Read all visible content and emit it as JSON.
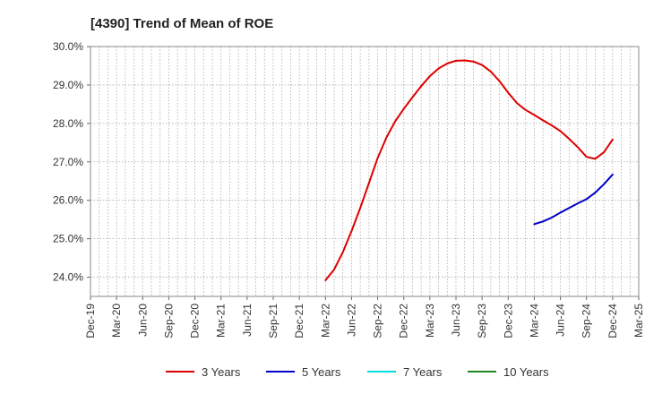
{
  "chart_data": {
    "type": "line",
    "title": "[4390]  Trend of Mean of ROE",
    "xlabel": "",
    "ylabel": "",
    "y_ticks": [
      "24.0%",
      "25.0%",
      "26.0%",
      "27.0%",
      "28.0%",
      "29.0%",
      "30.0%"
    ],
    "ylim": [
      23.5,
      30.0
    ],
    "x_ticks": [
      "Dec-19",
      "Mar-20",
      "Jun-20",
      "Sep-20",
      "Dec-20",
      "Mar-21",
      "Jun-21",
      "Sep-21",
      "Dec-21",
      "Mar-22",
      "Jun-22",
      "Sep-22",
      "Dec-22",
      "Mar-23",
      "Jun-23",
      "Sep-23",
      "Dec-23",
      "Mar-24",
      "Jun-24",
      "Sep-24",
      "Dec-24",
      "Mar-25"
    ],
    "grid": true,
    "legend_position": "bottom",
    "colors": {
      "3 Years": "#dd0000",
      "5 Years": "#0000cc",
      "7 Years": "#00dddd",
      "10 Years": "#228822"
    },
    "series": [
      {
        "name": "3 Years",
        "x": [
          "Mar-22",
          "Apr-22",
          "May-22",
          "Jun-22",
          "Jul-22",
          "Aug-22",
          "Sep-22",
          "Oct-22",
          "Nov-22",
          "Dec-22",
          "Jan-23",
          "Feb-23",
          "Mar-23",
          "Apr-23",
          "May-23",
          "Jun-23",
          "Jul-23",
          "Aug-23",
          "Sep-23",
          "Oct-23",
          "Nov-23",
          "Dec-23",
          "Jan-24",
          "Feb-24",
          "Mar-24",
          "Apr-24",
          "May-24",
          "Jun-24",
          "Jul-24",
          "Aug-24",
          "Sep-24",
          "Oct-24",
          "Nov-24",
          "Dec-24"
        ],
        "values": [
          23.92,
          24.2,
          24.65,
          25.2,
          25.8,
          26.45,
          27.1,
          27.63,
          28.05,
          28.38,
          28.68,
          28.97,
          29.23,
          29.43,
          29.56,
          29.63,
          29.64,
          29.61,
          29.52,
          29.35,
          29.1,
          28.8,
          28.53,
          28.35,
          28.22,
          28.08,
          27.95,
          27.8,
          27.6,
          27.38,
          27.13,
          27.08,
          27.25,
          27.58
        ]
      },
      {
        "name": "5 Years",
        "x": [
          "Mar-24",
          "Apr-24",
          "May-24",
          "Jun-24",
          "Jul-24",
          "Aug-24",
          "Sep-24",
          "Oct-24",
          "Nov-24",
          "Dec-24"
        ],
        "values": [
          25.38,
          25.45,
          25.55,
          25.68,
          25.8,
          25.92,
          26.03,
          26.2,
          26.42,
          26.67
        ]
      },
      {
        "name": "7 Years",
        "x": [],
        "values": []
      },
      {
        "name": "10 Years",
        "x": [],
        "values": []
      }
    ]
  }
}
